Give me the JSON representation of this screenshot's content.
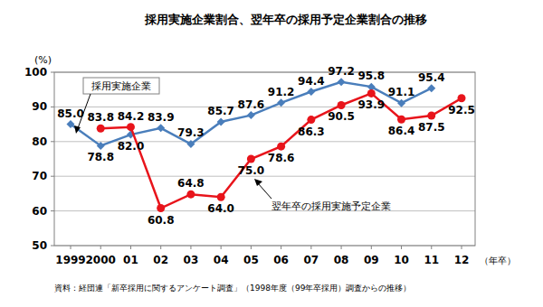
{
  "chart_data": {
    "type": "line",
    "title": "採用実施企業割合、翌年卒の採用予定企業割合の推移",
    "y_label": "(%)",
    "x_label": "（年卒）",
    "source": "資料：経団連「新卒採用に関するアンケート調査」（1998年度（99年卒採用）調査からの推移）",
    "categories": [
      "1999",
      "2000",
      "01",
      "02",
      "03",
      "04",
      "05",
      "06",
      "07",
      "08",
      "09",
      "10",
      "11",
      "12"
    ],
    "series": [
      {
        "name": "採用実施企業",
        "color": "#4a7ebb",
        "marker": "diamond",
        "values": [
          85.0,
          78.8,
          82.0,
          83.9,
          79.3,
          85.7,
          87.6,
          91.2,
          94.4,
          97.2,
          95.8,
          91.1,
          95.4,
          null
        ],
        "value_labels": [
          "85.0",
          "78.8",
          "82.0",
          "83.9",
          "79.3",
          "85.7",
          "87.6",
          "91.2",
          "94.4",
          "97.2",
          "95.8",
          "91.1",
          "95.4",
          null
        ]
      },
      {
        "name": "翌年卒の採用実施予定企業",
        "color": "#e8141b",
        "marker": "circle",
        "values": [
          null,
          83.8,
          84.2,
          60.8,
          64.8,
          64.0,
          75.0,
          78.6,
          86.3,
          90.5,
          93.9,
          86.4,
          87.5,
          92.5
        ],
        "value_labels": [
          null,
          "83.8",
          "84.2",
          "60.8",
          "64.8",
          "64.0",
          "75.0",
          "78.6",
          "86.3",
          "90.5",
          "93.9",
          "86.4",
          "87.5",
          "92.5"
        ]
      }
    ],
    "ylim": [
      50,
      100
    ],
    "yticks": [
      50,
      60,
      70,
      80,
      90,
      100
    ],
    "grid": true,
    "data_labels": true
  }
}
